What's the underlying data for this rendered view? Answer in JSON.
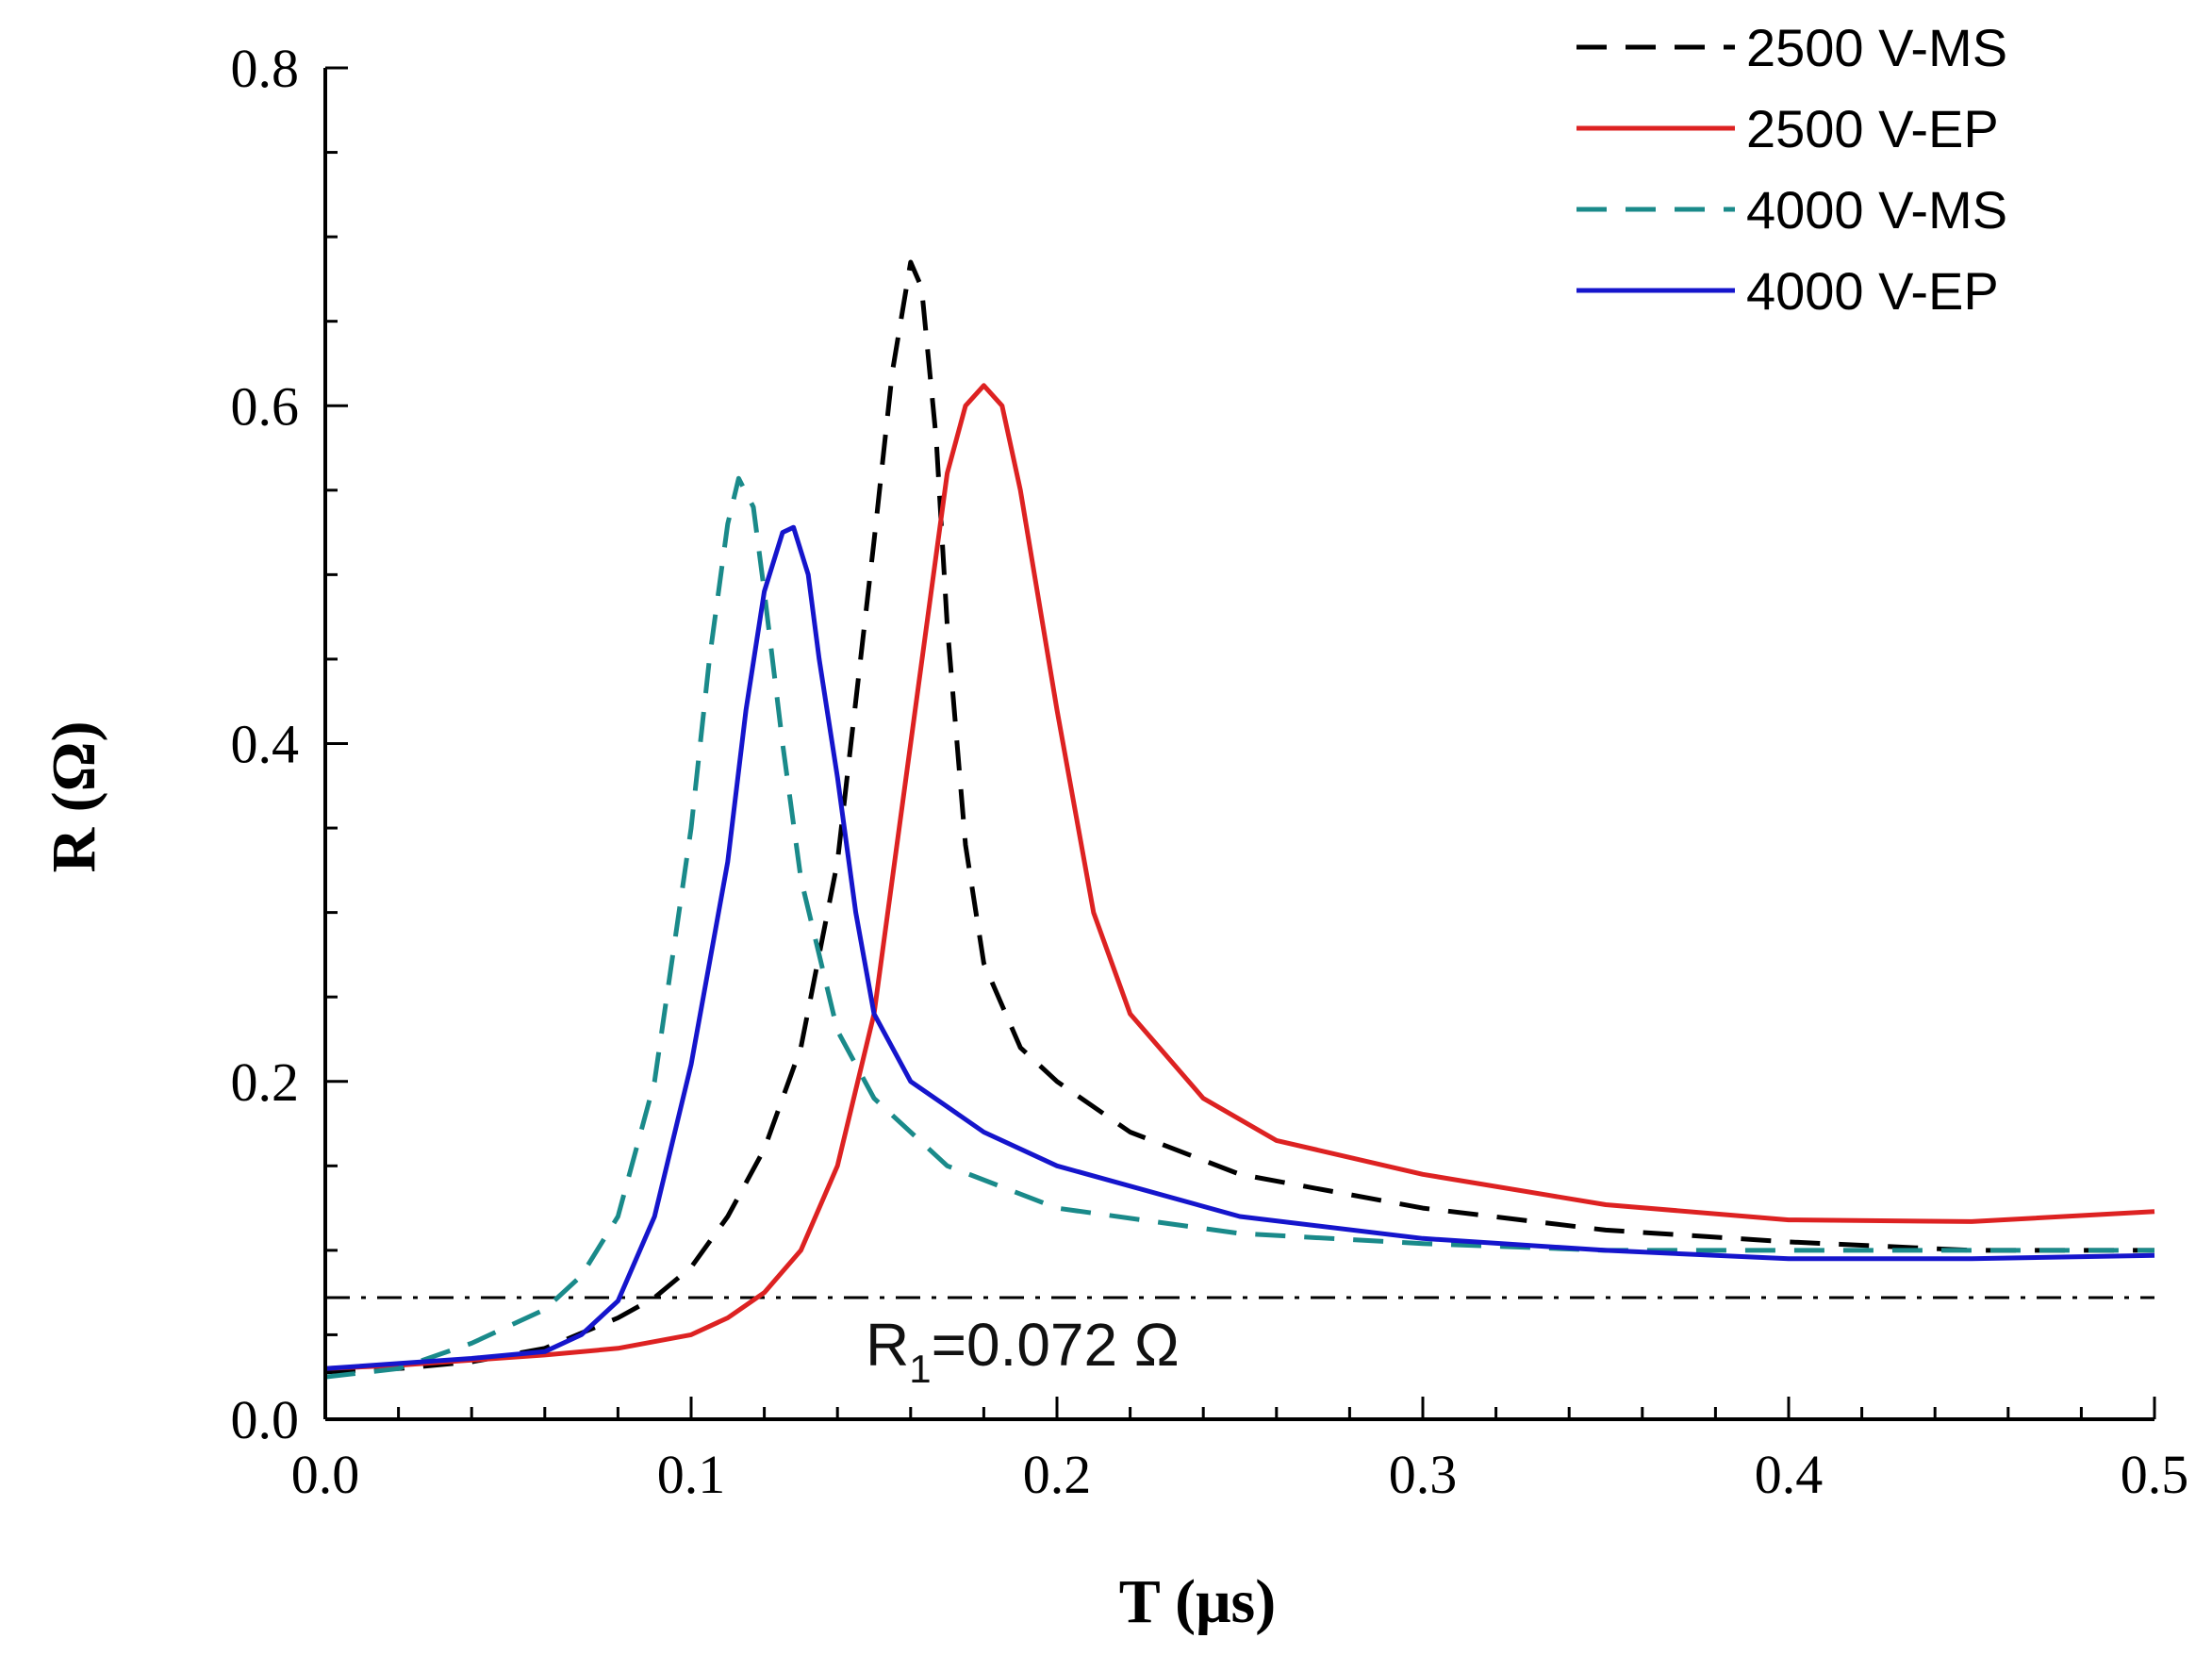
{
  "chart_data": {
    "type": "line",
    "title": "",
    "xlabel": "T (μs)",
    "ylabel": "R (Ω)",
    "xlim": [
      0.0,
      0.5
    ],
    "ylim": [
      0.0,
      0.8
    ],
    "x_ticks": [
      "0.0",
      "0.1",
      "0.2",
      "0.3",
      "0.4",
      "0.5"
    ],
    "y_ticks": [
      "0.0",
      "0.2",
      "0.4",
      "0.6",
      "0.8"
    ],
    "x_tick_values": [
      0.0,
      0.1,
      0.2,
      0.3,
      0.4,
      0.5
    ],
    "y_tick_values": [
      0.0,
      0.2,
      0.4,
      0.6,
      0.8
    ],
    "legend_position": "top-right",
    "series": [
      {
        "name": "2500 V-MS",
        "color": "#000000",
        "style": "dashed",
        "x": [
          0.0,
          0.02,
          0.04,
          0.06,
          0.08,
          0.09,
          0.1,
          0.11,
          0.12,
          0.13,
          0.14,
          0.15,
          0.155,
          0.16,
          0.163,
          0.167,
          0.17,
          0.175,
          0.18,
          0.19,
          0.2,
          0.22,
          0.25,
          0.3,
          0.35,
          0.4,
          0.45,
          0.5
        ],
        "values": [
          0.028,
          0.03,
          0.034,
          0.042,
          0.06,
          0.072,
          0.09,
          0.12,
          0.16,
          0.22,
          0.33,
          0.52,
          0.62,
          0.685,
          0.67,
          0.58,
          0.47,
          0.34,
          0.27,
          0.22,
          0.2,
          0.17,
          0.145,
          0.125,
          0.112,
          0.105,
          0.1,
          0.1
        ]
      },
      {
        "name": "2500 V-EP",
        "color": "#dd2222",
        "style": "solid",
        "x": [
          0.0,
          0.02,
          0.04,
          0.06,
          0.08,
          0.1,
          0.11,
          0.12,
          0.13,
          0.14,
          0.15,
          0.16,
          0.17,
          0.175,
          0.18,
          0.185,
          0.19,
          0.2,
          0.21,
          0.22,
          0.24,
          0.26,
          0.3,
          0.35,
          0.4,
          0.45,
          0.5
        ],
        "values": [
          0.03,
          0.032,
          0.035,
          0.038,
          0.042,
          0.05,
          0.06,
          0.075,
          0.1,
          0.15,
          0.24,
          0.4,
          0.56,
          0.6,
          0.612,
          0.6,
          0.55,
          0.42,
          0.3,
          0.24,
          0.19,
          0.165,
          0.145,
          0.127,
          0.118,
          0.117,
          0.123
        ]
      },
      {
        "name": "4000 V-MS",
        "color": "#1a8a8a",
        "style": "dashed",
        "x": [
          0.0,
          0.02,
          0.04,
          0.06,
          0.07,
          0.08,
          0.09,
          0.1,
          0.105,
          0.11,
          0.113,
          0.117,
          0.12,
          0.125,
          0.13,
          0.14,
          0.15,
          0.17,
          0.2,
          0.25,
          0.3,
          0.35,
          0.4,
          0.45,
          0.5
        ],
        "values": [
          0.025,
          0.03,
          0.045,
          0.065,
          0.085,
          0.12,
          0.2,
          0.35,
          0.45,
          0.53,
          0.557,
          0.54,
          0.49,
          0.4,
          0.32,
          0.23,
          0.19,
          0.15,
          0.125,
          0.11,
          0.104,
          0.1,
          0.1,
          0.1,
          0.1
        ]
      },
      {
        "name": "4000 V-EP",
        "color": "#1515cc",
        "style": "solid",
        "x": [
          0.0,
          0.02,
          0.04,
          0.06,
          0.07,
          0.08,
          0.09,
          0.1,
          0.11,
          0.115,
          0.12,
          0.125,
          0.128,
          0.132,
          0.135,
          0.14,
          0.145,
          0.15,
          0.16,
          0.17,
          0.18,
          0.2,
          0.25,
          0.3,
          0.35,
          0.4,
          0.45,
          0.5
        ],
        "values": [
          0.03,
          0.033,
          0.036,
          0.04,
          0.05,
          0.07,
          0.12,
          0.21,
          0.33,
          0.42,
          0.49,
          0.525,
          0.528,
          0.5,
          0.45,
          0.38,
          0.3,
          0.24,
          0.2,
          0.185,
          0.17,
          0.15,
          0.12,
          0.107,
          0.1,
          0.095,
          0.095,
          0.097
        ]
      }
    ],
    "reference_line": {
      "y": 0.072,
      "style": "dash-dot",
      "color": "#000000"
    },
    "annotation": {
      "prefix": "R",
      "subscript": "1",
      "suffix": "=0.072 Ω"
    }
  }
}
